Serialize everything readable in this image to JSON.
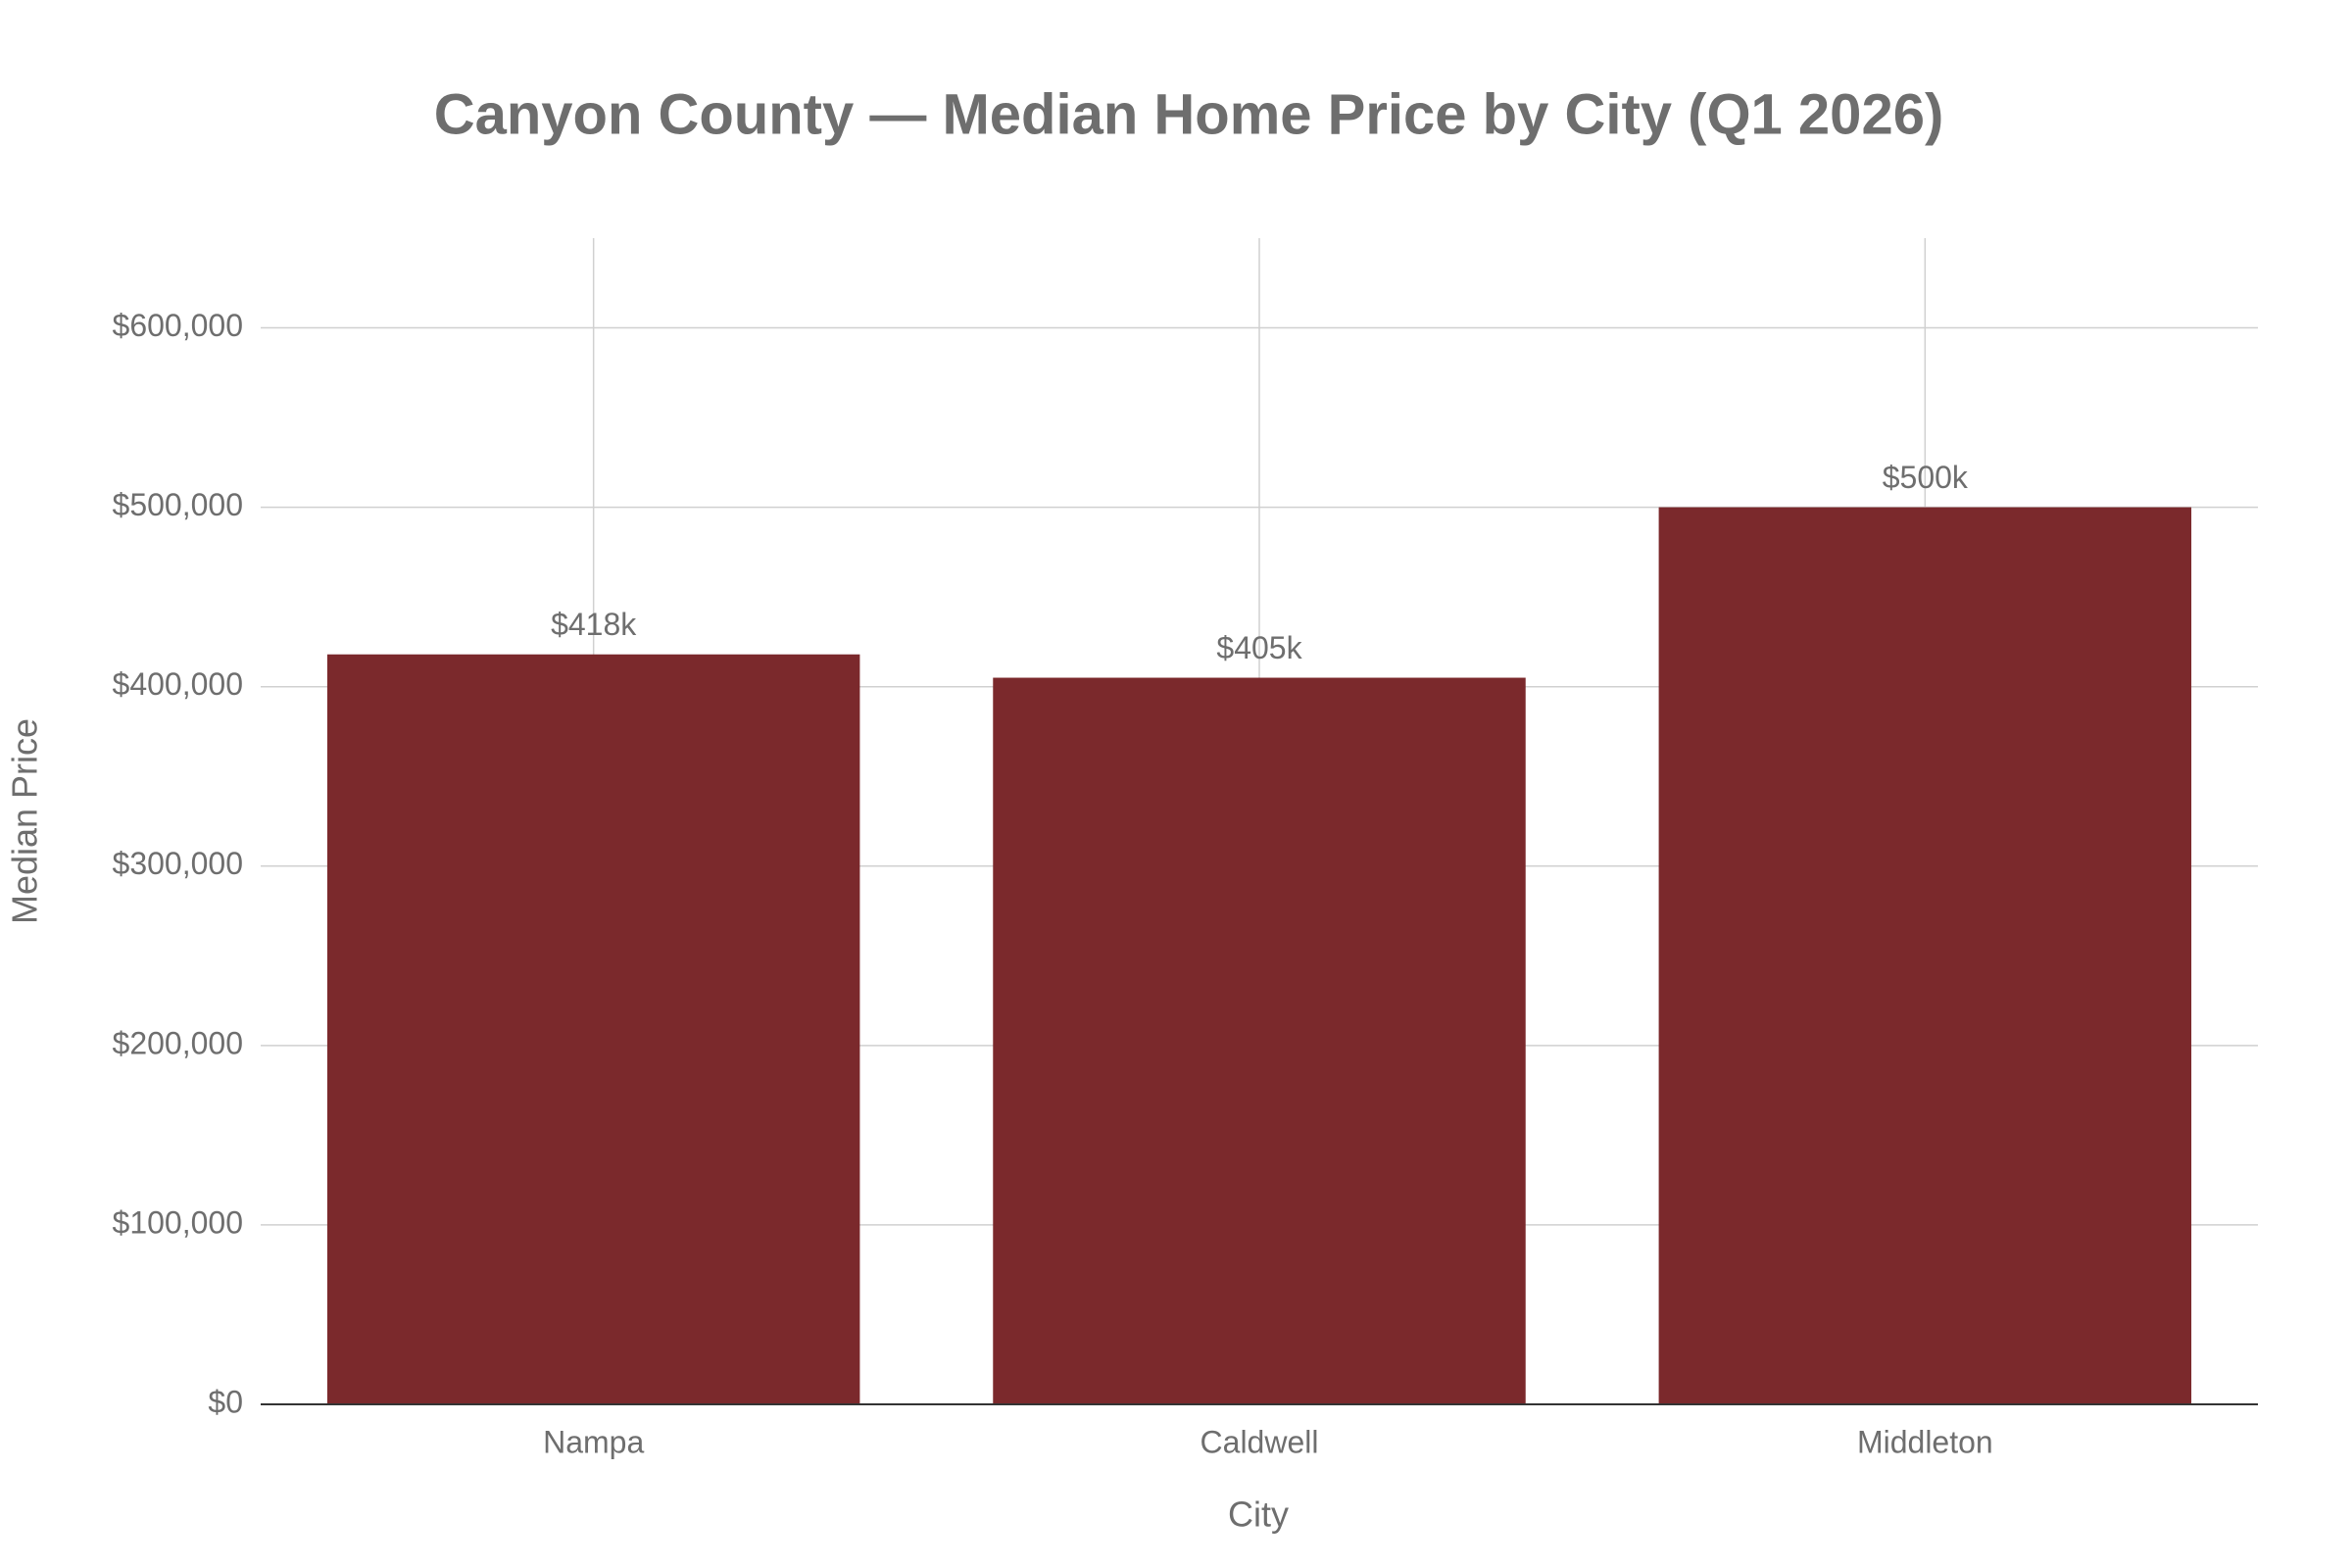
{
  "chart_data": {
    "type": "bar",
    "title": "Canyon County — Median Home Price by City (Q1 2026)",
    "x_label": "City",
    "y_label": "Median Price",
    "categories": [
      "Nampa",
      "Caldwell",
      "Middleton"
    ],
    "values": [
      418000,
      405000,
      500000
    ],
    "value_labels": [
      "$418k",
      "$405k",
      "$500k"
    ],
    "color": "#7b292c",
    "ylim": [
      0,
      650000
    ],
    "yticks": [
      {
        "value": 0,
        "label": "$0"
      },
      {
        "value": 100000,
        "label": "$100,000"
      },
      {
        "value": 200000,
        "label": "$200,000"
      },
      {
        "value": 300000,
        "label": "$300,000"
      },
      {
        "value": 400000,
        "label": "$400,000"
      },
      {
        "value": 500000,
        "label": "$500,000"
      },
      {
        "value": 600000,
        "label": "$600,000"
      }
    ],
    "grid": true
  }
}
